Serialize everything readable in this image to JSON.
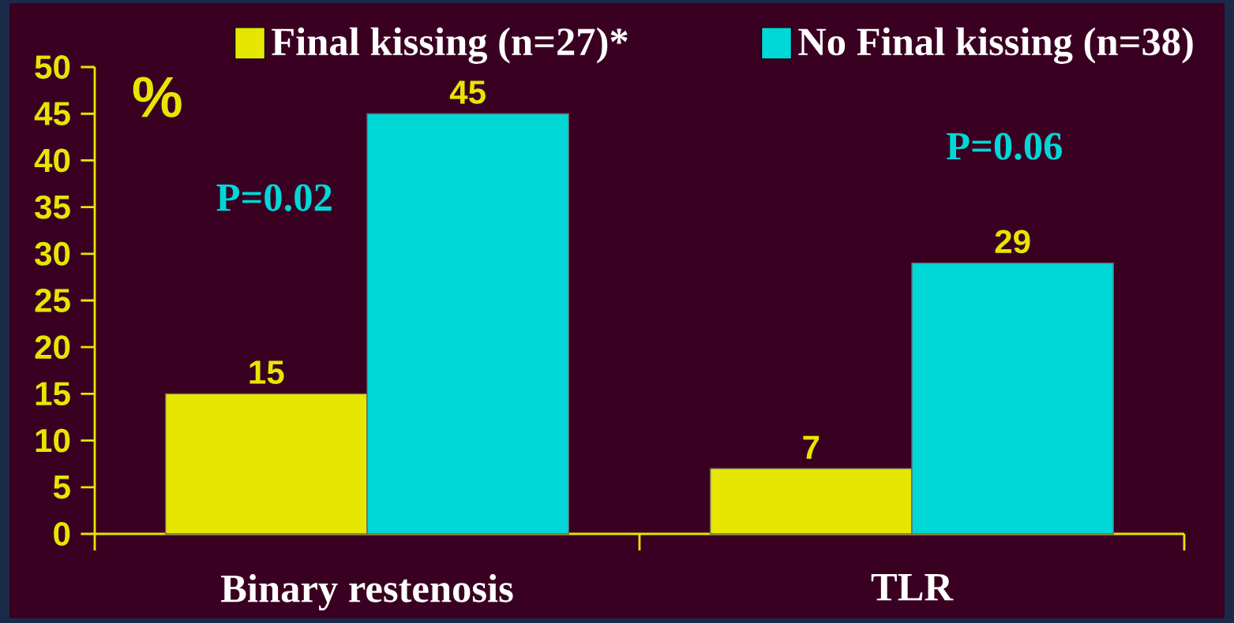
{
  "chart_data": {
    "type": "bar",
    "categories": [
      "Binary restenosis",
      "TLR"
    ],
    "series": [
      {
        "name": "Final kissing  (n=27)*",
        "color": "#e6e600",
        "values": [
          15,
          7
        ]
      },
      {
        "name": "No Final kissing (n=38)",
        "color": "#00d8d8",
        "values": [
          45,
          29
        ]
      }
    ],
    "ylabel": "%",
    "ylim": [
      0,
      50
    ],
    "yticks": [
      0,
      5,
      10,
      15,
      20,
      25,
      30,
      35,
      40,
      45,
      50
    ],
    "data_labels": true,
    "legend": "top",
    "annotations": [
      "P=0.02",
      "P=0.06"
    ]
  }
}
